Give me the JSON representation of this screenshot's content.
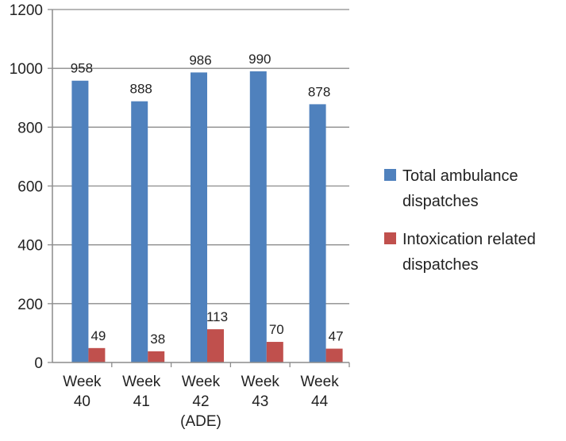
{
  "chart_data": {
    "type": "bar",
    "title": "",
    "xlabel": "",
    "ylabel": "",
    "ylim": [
      0,
      1200
    ],
    "yticks": [
      0,
      200,
      400,
      600,
      800,
      1000,
      1200
    ],
    "grid": true,
    "legend_position": "right",
    "categories": [
      [
        "Week",
        "40"
      ],
      [
        "Week",
        "41"
      ],
      [
        "Week",
        "42",
        "(ADE)"
      ],
      [
        "Week",
        "43"
      ],
      [
        "Week",
        "44"
      ]
    ],
    "series": [
      {
        "name": "Total ambulance dispatches",
        "legend_lines": [
          "Total ambulance",
          "dispatches"
        ],
        "color": "#4F81BD",
        "values": [
          958,
          888,
          986,
          990,
          878
        ]
      },
      {
        "name": "Intoxication related dispatches",
        "legend_lines": [
          "Intoxication related",
          "dispatches"
        ],
        "color": "#C0504D",
        "values": [
          49,
          38,
          113,
          70,
          47
        ]
      }
    ]
  }
}
